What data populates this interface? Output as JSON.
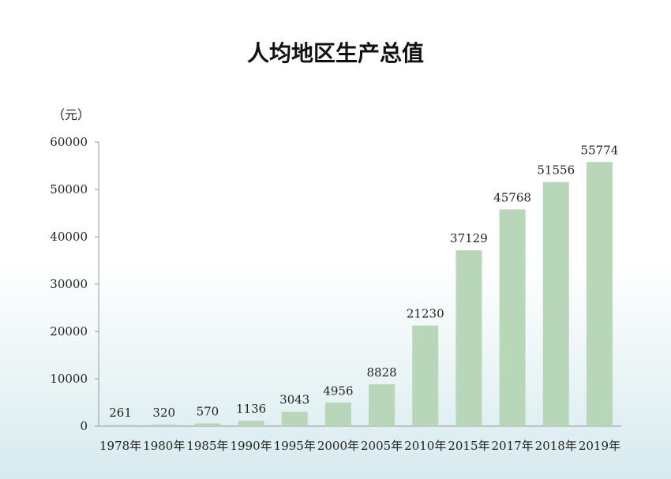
{
  "chart_data": {
    "type": "bar",
    "title": "人均地区生产总值",
    "ylabel": "（元）",
    "xlabel": "",
    "categories": [
      "1978年",
      "1980年",
      "1985年",
      "1990年",
      "1995年",
      "2000年",
      "2005年",
      "2010年",
      "2015年",
      "2017年",
      "2018年",
      "2019年"
    ],
    "values": [
      261,
      320,
      570,
      1136,
      3043,
      4956,
      8828,
      21230,
      37129,
      45768,
      51556,
      55774
    ],
    "value_labels": [
      "261",
      "320",
      "570",
      "1136",
      "3043",
      "4956",
      "8828",
      "21230",
      "37129",
      "45768",
      "51556",
      "55774"
    ],
    "y_ticks": [
      0,
      10000,
      20000,
      30000,
      40000,
      50000,
      60000
    ],
    "y_tick_labels": [
      "0",
      "10000",
      "20000",
      "30000",
      "40000",
      "50000",
      "60000"
    ],
    "ylim": [
      0,
      60000
    ],
    "grid": false,
    "bar_color": "#b7d7b8"
  }
}
